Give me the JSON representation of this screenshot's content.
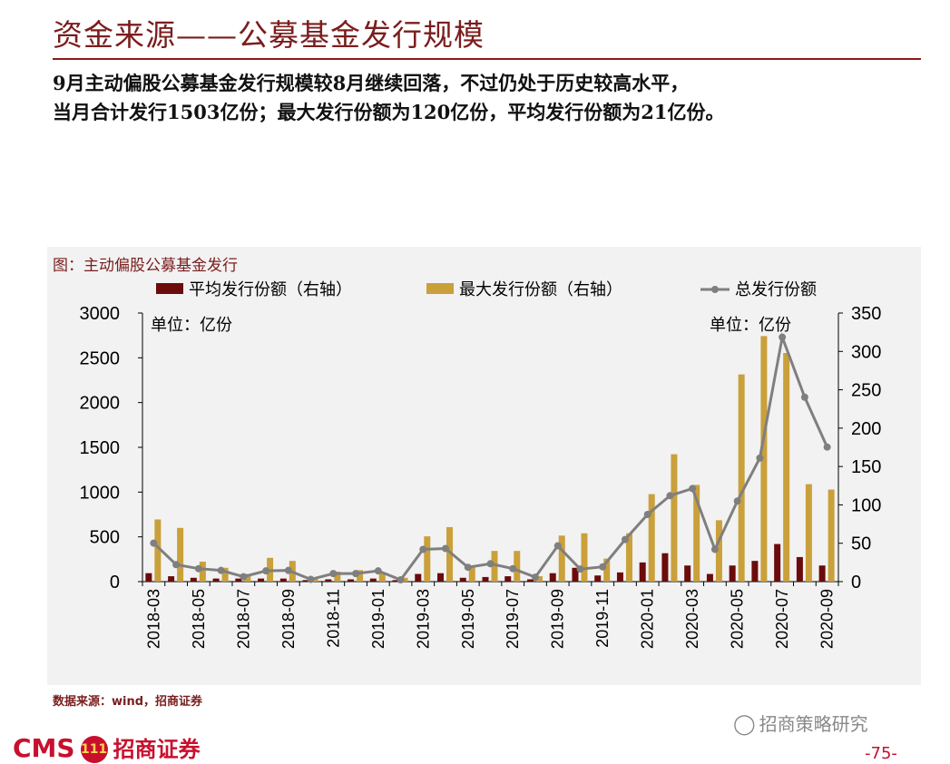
{
  "header": {
    "title": "资金来源——公募基金发行规模"
  },
  "summary": {
    "line1": "9月主动偏股公募基金发行规模较8月继续回落，不过仍处于历史较高水平，",
    "line2": "当月合计发行1503亿份；最大发行份额为120亿份，平均发行份额为21亿份。"
  },
  "chart_caption": "图：主动偏股公募基金发行",
  "source": "数据来源：wind，招商证券",
  "watermark": "招商策略研究",
  "footer": {
    "brand": "CMS",
    "badge": "111",
    "company": "招商证券",
    "page": "-75-"
  },
  "colors": {
    "avg": "#6b0b0b",
    "max": "#c9a03a",
    "total": "#7f7f7f",
    "accent": "#7a1d1d"
  },
  "chart_data": {
    "type": "bar+line",
    "categories": [
      "2018-03",
      "2018-04",
      "2018-05",
      "2018-06",
      "2018-07",
      "2018-08",
      "2018-09",
      "2018-10",
      "2018-11",
      "2018-12",
      "2019-01",
      "2019-02",
      "2019-03",
      "2019-04",
      "2019-05",
      "2019-06",
      "2019-07",
      "2019-08",
      "2019-09",
      "2019-10",
      "2019-11",
      "2019-12",
      "2020-01",
      "2020-02",
      "2020-03",
      "2020-04",
      "2020-05",
      "2020-06",
      "2020-07",
      "2020-08",
      "2020-09"
    ],
    "tick_labels": [
      "2018-03",
      "2018-05",
      "2018-07",
      "2018-09",
      "2018-11",
      "2019-01",
      "2019-03",
      "2019-05",
      "2019-07",
      "2019-09",
      "2019-11",
      "2020-01",
      "2020-03",
      "2020-05",
      "2020-07",
      "2020-09"
    ],
    "series": [
      {
        "name": "平均发行份额（右轴）",
        "type": "bar",
        "axis": "right",
        "values": [
          11,
          7,
          5,
          4,
          4,
          4,
          4,
          2,
          3,
          3,
          4,
          2,
          10,
          11,
          5,
          6,
          7,
          3,
          11,
          18,
          8,
          12,
          25,
          37,
          21,
          10,
          21,
          27,
          49,
          32,
          21
        ]
      },
      {
        "name": "最大发行份额（右轴）",
        "type": "bar",
        "axis": "right",
        "values": [
          81,
          70,
          26,
          18,
          10,
          31,
          27,
          5,
          13,
          15,
          12,
          5,
          59,
          71,
          20,
          40,
          40,
          7,
          60,
          63,
          30,
          63,
          114,
          166,
          126,
          80,
          270,
          320,
          298,
          127,
          120
        ]
      },
      {
        "name": "总发行份额",
        "type": "line",
        "axis": "left",
        "values": [
          430,
          190,
          145,
          125,
          55,
          120,
          125,
          25,
          90,
          90,
          120,
          20,
          360,
          370,
          160,
          200,
          145,
          50,
          400,
          140,
          165,
          470,
          750,
          960,
          1040,
          360,
          900,
          1380,
          2730,
          2060,
          1503
        ]
      }
    ],
    "left_axis": {
      "ticks": [
        0,
        500,
        1000,
        1500,
        2000,
        2500,
        3000
      ],
      "range": [
        0,
        3000
      ],
      "unit_label": "单位：亿份"
    },
    "right_axis": {
      "ticks": [
        0,
        50,
        100,
        150,
        200,
        250,
        300,
        350
      ],
      "range": [
        0,
        350
      ],
      "unit_label": "单位：亿份"
    },
    "legend_position": "top"
  }
}
